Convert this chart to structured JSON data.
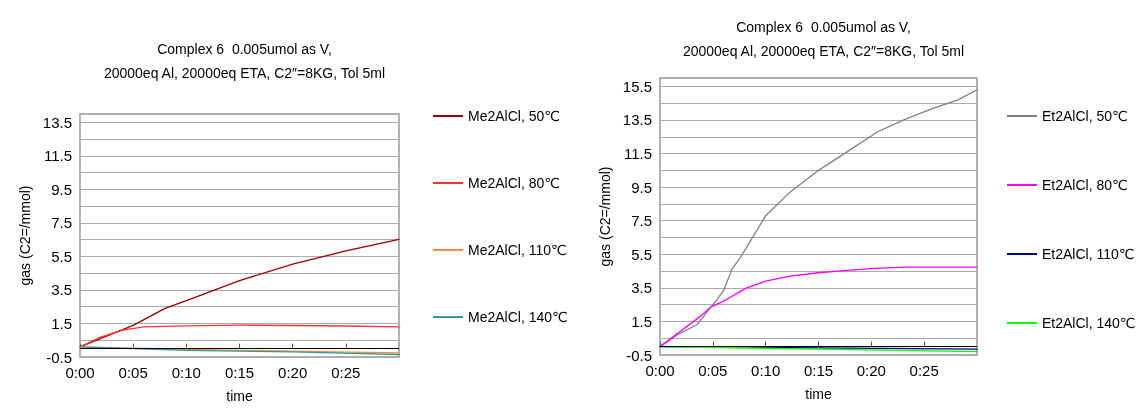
{
  "chart_data": [
    {
      "type": "line",
      "title": "Complex 6  0.005umol as V,\n20000eq Al, 20000eq ETA, C2″=8KG, Tol 5ml",
      "xlabel": "time",
      "ylabel": "gas (C2=/mmol)",
      "xlim": [
        0,
        30
      ],
      "ylim": [
        -0.5,
        14
      ],
      "xticks": [
        {
          "value": 0,
          "label": "0:00"
        },
        {
          "value": 5,
          "label": "0:05"
        },
        {
          "value": 10,
          "label": "0:10"
        },
        {
          "value": 15,
          "label": "0:15"
        },
        {
          "value": 20,
          "label": "0:20"
        },
        {
          "value": 25,
          "label": "0:25"
        }
      ],
      "yticks": [
        -0.5,
        {
          "value": 0.5,
          "label": null
        },
        1.5,
        {
          "value": 2.5,
          "label": null
        },
        3.5,
        {
          "value": 4.5,
          "label": null
        },
        5.5,
        {
          "value": 6.5,
          "label": null
        },
        7.5,
        {
          "value": 8.5,
          "label": null
        },
        9.5,
        {
          "value": 10.5,
          "label": null
        },
        11.5,
        {
          "value": 12.5,
          "label": null
        },
        13.5
      ],
      "grid": "y",
      "legend": "right",
      "marker": "none",
      "line_style": "solid",
      "ref_lines": [
        {
          "axis": "y",
          "value": 0,
          "color": "#000000"
        }
      ],
      "series": [
        {
          "name": "Me2AlCl, 50℃",
          "color": "#990000",
          "x": [
            0,
            5,
            8,
            10,
            15,
            20,
            25,
            30
          ],
          "values": [
            0.1,
            1.39,
            2.4,
            2.87,
            4.06,
            5.04,
            5.83,
            6.52
          ]
        },
        {
          "name": "Me2AlCl, 80℃",
          "color": "#ff3333",
          "x": [
            0,
            2,
            4,
            6,
            10,
            15,
            20,
            25,
            30
          ],
          "values": [
            0.1,
            0.7,
            1.1,
            1.3,
            1.36,
            1.4,
            1.38,
            1.35,
            1.3
          ]
        },
        {
          "name": "Me2AlCl, 110℃",
          "color": "#ff8c40",
          "x": [
            0,
            10,
            20,
            30
          ],
          "values": [
            0.1,
            -0.05,
            -0.15,
            -0.25
          ]
        },
        {
          "name": "Me2AlCl, 140℃",
          "color": "#339999",
          "x": [
            0,
            10,
            20,
            30
          ],
          "values": [
            0.1,
            -0.1,
            -0.2,
            -0.35
          ]
        }
      ]
    },
    {
      "type": "line",
      "title": "Complex 6  0.005umol as V,\n20000eq Al, 20000eq ETA, C2″=8KG, Tol 5ml",
      "xlabel": "time",
      "ylabel": "gas (C2=/mmol)",
      "xlim": [
        0,
        30
      ],
      "ylim": [
        -0.5,
        16
      ],
      "xticks": [
        {
          "value": 0,
          "label": "0:00"
        },
        {
          "value": 5,
          "label": "0:05"
        },
        {
          "value": 10,
          "label": "0:10"
        },
        {
          "value": 15,
          "label": "0:15"
        },
        {
          "value": 20,
          "label": "0:20"
        },
        {
          "value": 25,
          "label": "0:25"
        }
      ],
      "yticks": [
        -0.5,
        {
          "value": 0.5,
          "label": null
        },
        1.5,
        {
          "value": 2.5,
          "label": null
        },
        3.5,
        {
          "value": 4.5,
          "label": null
        },
        5.5,
        {
          "value": 6.5,
          "label": null
        },
        7.5,
        {
          "value": 8.5,
          "label": null
        },
        9.5,
        {
          "value": 10.5,
          "label": null
        },
        11.5,
        {
          "value": 12.5,
          "label": null
        },
        13.5,
        {
          "value": 14.5,
          "label": null
        },
        15.5
      ],
      "grid": "y",
      "legend": "right",
      "marker": "none",
      "line_style": "solid",
      "ref_lines": [
        {
          "axis": "y",
          "value": 0,
          "color": "#000000"
        }
      ],
      "series": [
        {
          "name": "Et2AlCl, 50℃",
          "color": "#808080",
          "x": [
            0,
            1.6,
            3.5,
            6,
            6.8,
            7.6,
            10,
            12.3,
            15,
            17.7,
            20.6,
            23.4,
            25.9,
            28.2,
            30
          ],
          "values": [
            0,
            0.7,
            1.3,
            3.3,
            4.6,
            5.3,
            7.8,
            9.2,
            10.5,
            11.6,
            12.8,
            13.6,
            14.2,
            14.7,
            15.3
          ]
        },
        {
          "name": "Et2AlCl, 80℃",
          "color": "#ff00ff",
          "x": [
            0,
            1.9,
            3.8,
            4.9,
            6,
            8.2,
            10,
            12.3,
            15,
            17.7,
            20.3,
            23.4,
            30
          ],
          "values": [
            0,
            0.9,
            1.8,
            2.4,
            2.7,
            3.5,
            3.9,
            4.2,
            4.4,
            4.54,
            4.66,
            4.73,
            4.73
          ]
        },
        {
          "name": "Et2AlCl, 110℃",
          "color": "#000080",
          "x": [
            0,
            15,
            30
          ],
          "values": [
            0,
            -0.07,
            -0.15
          ]
        },
        {
          "name": "Et2AlCl, 140℃",
          "color": "#00ff00",
          "x": [
            0,
            15,
            30
          ],
          "values": [
            0,
            -0.15,
            -0.3
          ]
        }
      ]
    }
  ]
}
